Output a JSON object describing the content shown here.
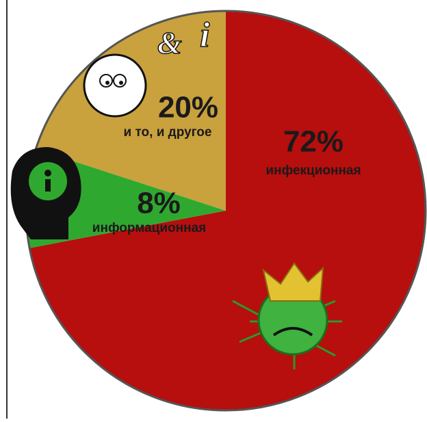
{
  "chart_data": {
    "type": "pie",
    "categories": [
      "инфекционная",
      "информационная",
      "и то, и другое"
    ],
    "values": [
      72,
      8,
      20
    ],
    "value_labels": [
      "72%",
      "8%",
      "20%"
    ],
    "colors": [
      "#b70e0e",
      "#2fa82f",
      "#c9a13d"
    ]
  }
}
